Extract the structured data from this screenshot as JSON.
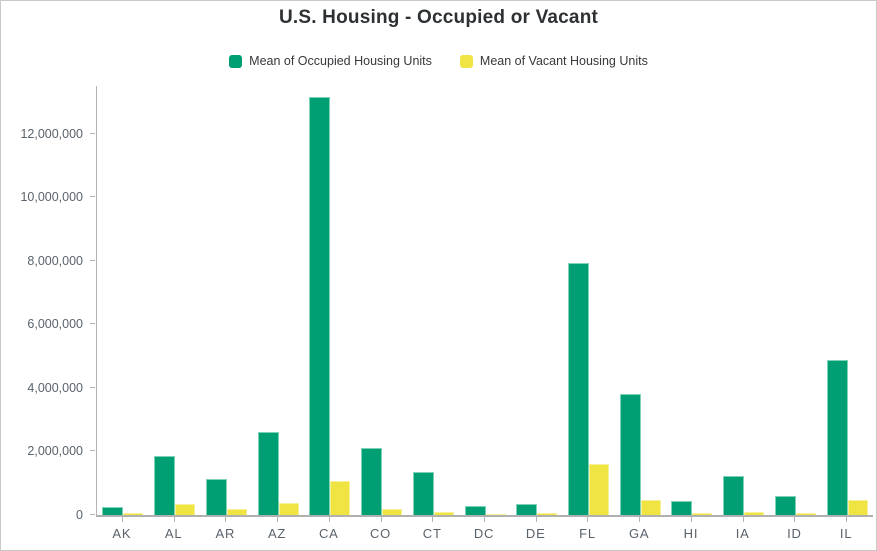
{
  "title": "U.S. Housing - Occupied or Vacant",
  "legend": {
    "items": [
      {
        "label": "Mean of Occupied Housing Units",
        "color": "#009e73"
      },
      {
        "label": "Mean of Vacant Housing Units",
        "color": "#f0e442"
      }
    ]
  },
  "colors": {
    "occupied": "#009e73",
    "occupied_border": "#7fd2b6",
    "vacant": "#f0e442",
    "vacant_border": "#f7f199",
    "axis": "#b3b3b3",
    "tick_text": "#5a636c"
  },
  "chart_data": {
    "type": "bar",
    "title": "U.S. Housing - Occupied or Vacant",
    "xlabel": "",
    "ylabel": "",
    "grid": false,
    "legend_position": "top-center",
    "ylim": [
      0,
      13500000
    ],
    "yticks": [
      0,
      2000000,
      4000000,
      6000000,
      8000000,
      10000000,
      12000000
    ],
    "ytick_labels": [
      "0",
      "2,000,000",
      "4,000,000",
      "6,000,000",
      "8,000,000",
      "10,000,000",
      "12,000,000"
    ],
    "categories": [
      "AK",
      "AL",
      "AR",
      "AZ",
      "CA",
      "CO",
      "CT",
      "DC",
      "DE",
      "FL",
      "GA",
      "HI",
      "IA",
      "ID",
      "IL"
    ],
    "series": [
      {
        "name": "Mean of Occupied Housing Units",
        "color": "#009e73",
        "values": [
          240000,
          1860000,
          1130000,
          2610000,
          13140000,
          2100000,
          1350000,
          270000,
          340000,
          7930000,
          3820000,
          440000,
          1230000,
          610000,
          4870000
        ]
      },
      {
        "name": "Mean of Vacant Housing Units",
        "color": "#f0e442",
        "values": [
          60000,
          350000,
          190000,
          380000,
          1070000,
          190000,
          110000,
          30000,
          70000,
          1600000,
          470000,
          70000,
          100000,
          60000,
          470000
        ]
      }
    ]
  }
}
